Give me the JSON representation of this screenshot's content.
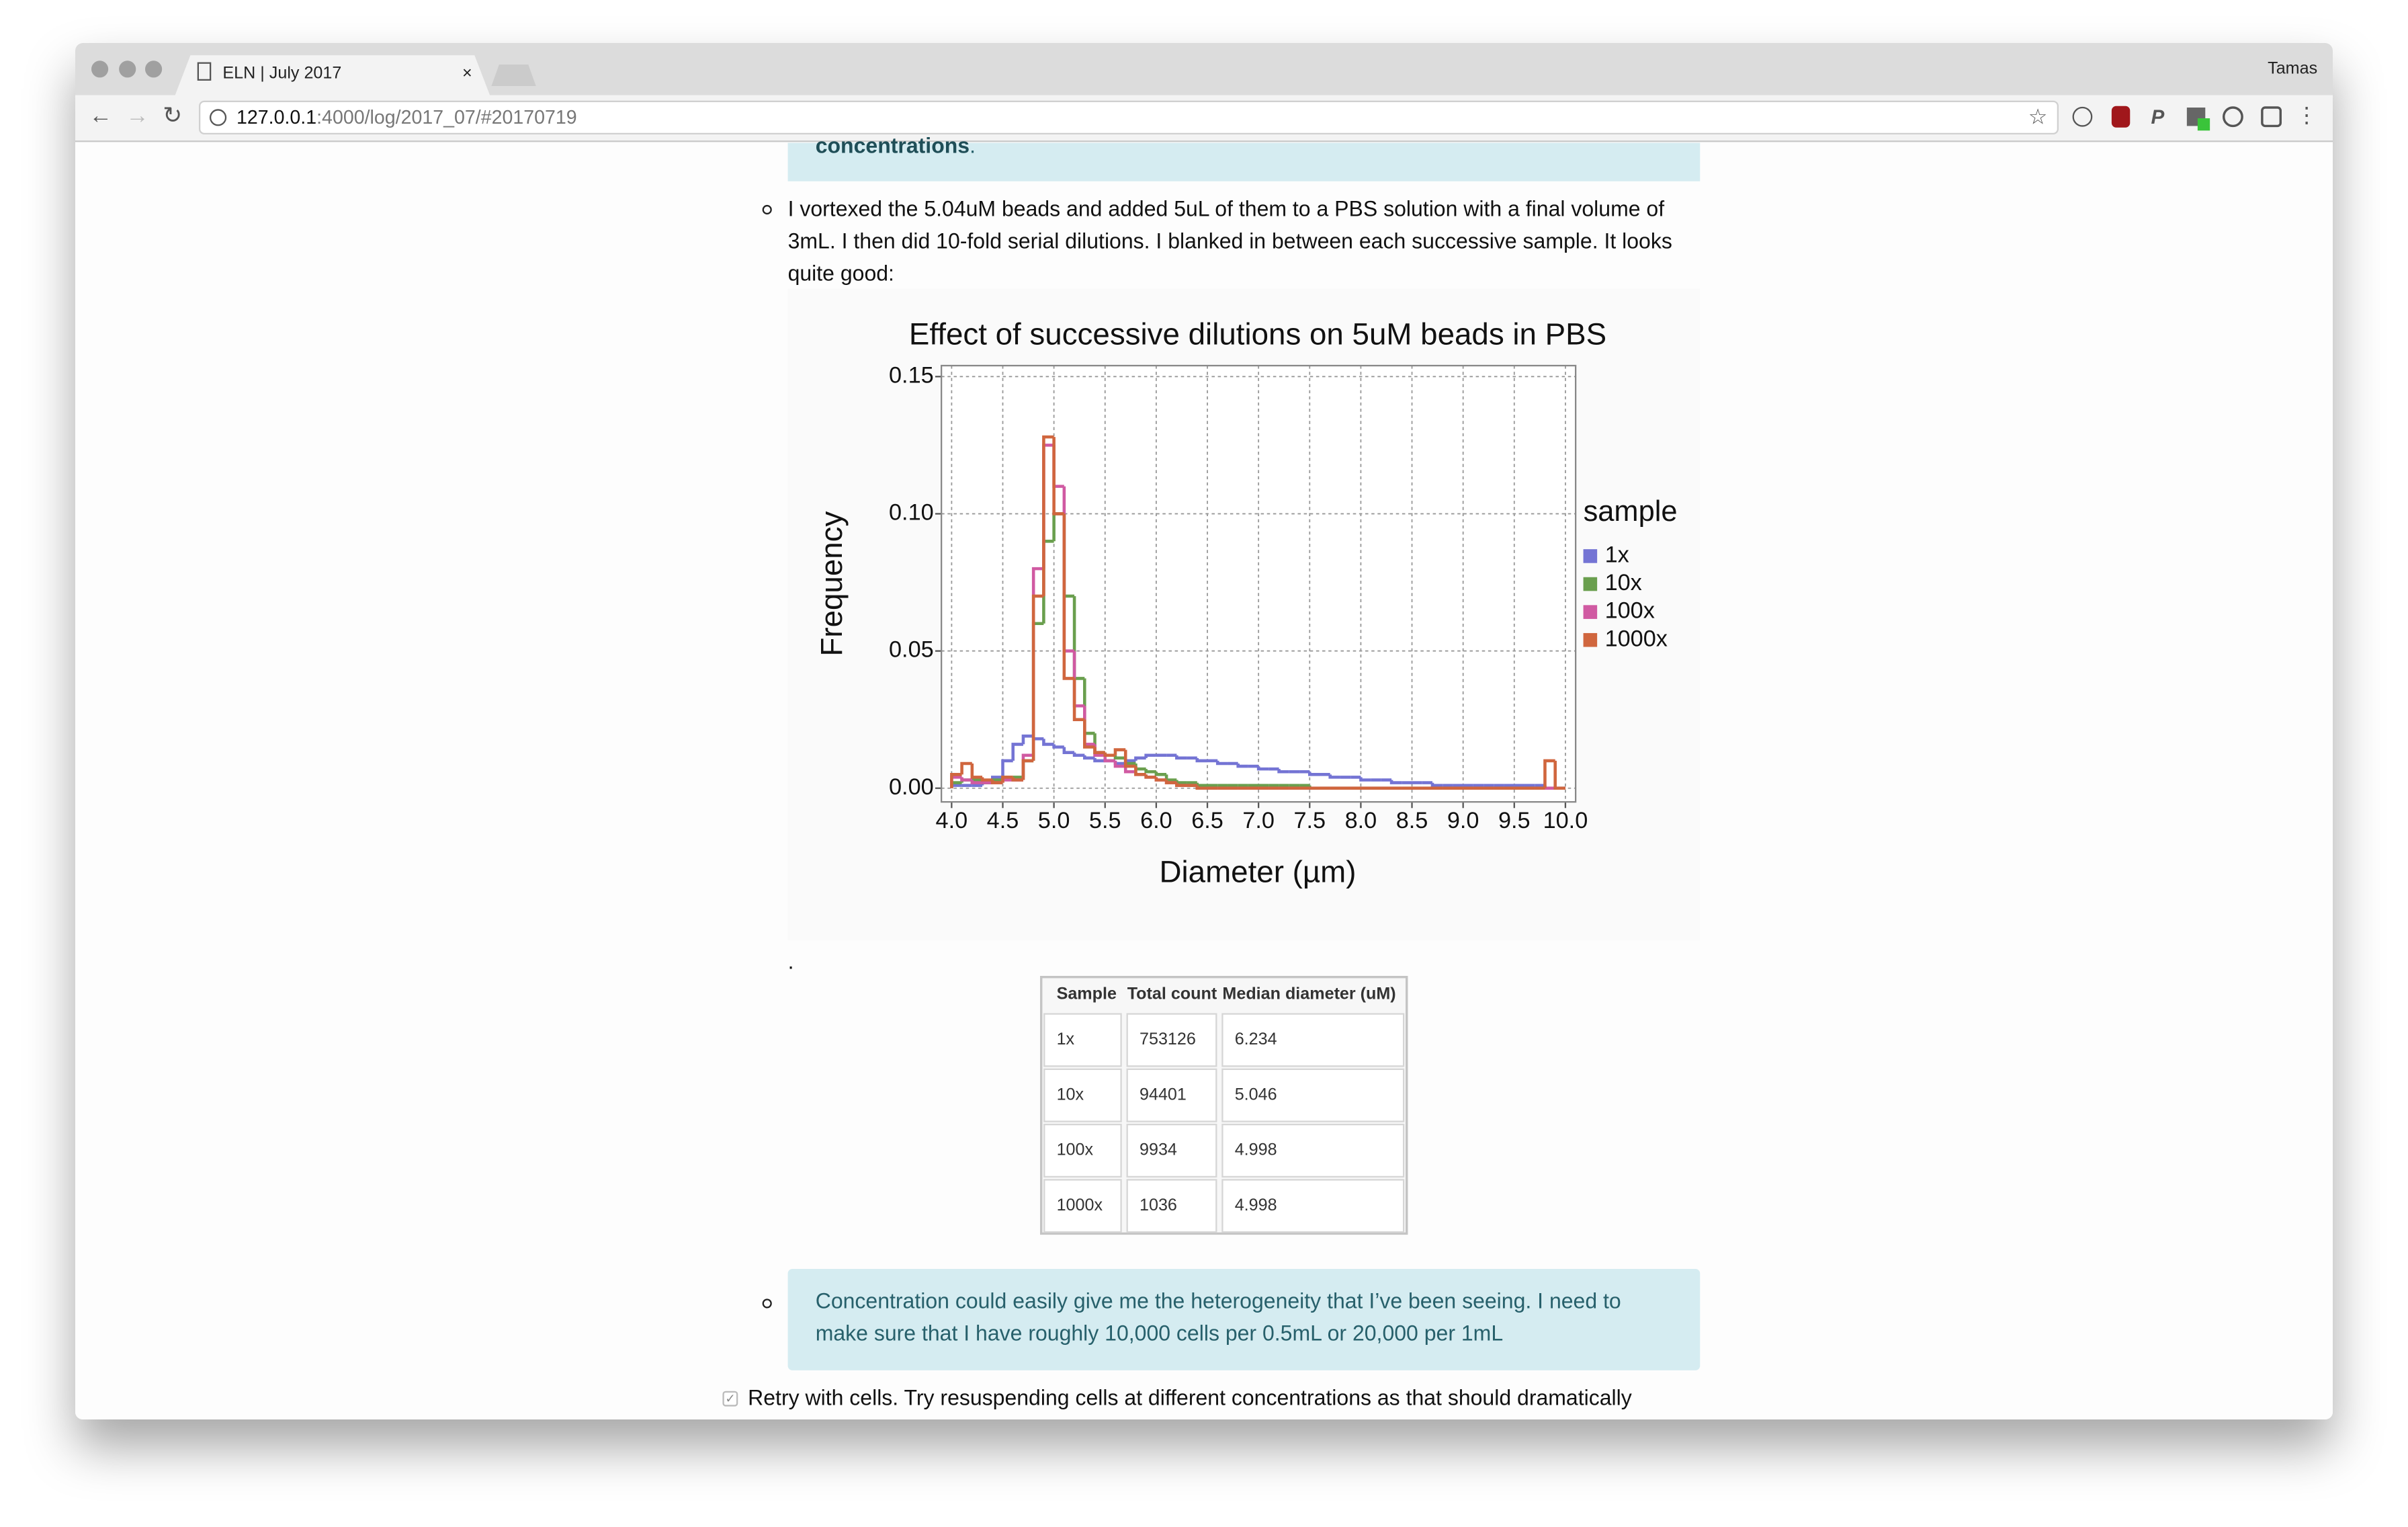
{
  "browser": {
    "tab_title": "ELN | July 2017",
    "user": "Tamas",
    "url_host": "127.0.0.1",
    "url_path": ":4000/log/2017_07/#20170719"
  },
  "content": {
    "callout_top": {
      "bold": "concentrations",
      "rest": "."
    },
    "paragraph_lines": [
      "I vortexed the 5.04uM beads and added 5uL of them to a PBS solution with a final volume of",
      "3mL. I then did 10-fold serial dilutions. I blanked in between each successive sample. It looks",
      "quite good:"
    ],
    "caption_dot": ".",
    "table": {
      "header": [
        "Sample",
        "Total count",
        "Median diameter (uM)"
      ],
      "rows": [
        [
          "1x",
          753126,
          6.234
        ],
        [
          "10x",
          94401,
          5.046
        ],
        [
          "100x",
          9934,
          4.998
        ],
        [
          "1000x",
          1036,
          4.998
        ]
      ]
    },
    "callout_lines": [
      "Concentration could easily give me the heterogeneity that I’ve been seeing. I need to",
      "make sure that I have roughly 10,000 cells per 0.5mL or 20,000 per 1mL"
    ],
    "checkbox_text": "Retry with cells. Try resuspending cells at different concentrations as that should dramatically"
  },
  "chart_data": {
    "type": "histogram",
    "title": "Effect of successive dilutions on 5uM beads in PBS",
    "xlabel": "Diameter (µm)",
    "ylabel": "Frequency",
    "legend_title": "sample",
    "legend": "right",
    "grid": true,
    "xlim": [
      3.9,
      10.1
    ],
    "ylim": [
      -0.005,
      0.154
    ],
    "xticks": [
      {
        "value": 4,
        "label": "4.0"
      },
      4.5,
      {
        "value": 5,
        "label": "5.0"
      },
      5.5,
      {
        "value": 6,
        "label": "6.0"
      },
      6.5,
      {
        "value": 7,
        "label": "7.0"
      },
      7.5,
      {
        "value": 8,
        "label": "8.0"
      },
      8.5,
      {
        "value": 9,
        "label": "9.0"
      },
      9.5,
      {
        "value": 10,
        "label": "10.0"
      }
    ],
    "yticks": [
      {
        "value": 0,
        "label": "0.00"
      },
      0.05,
      {
        "value": 0.1,
        "label": "0.10"
      },
      0.15
    ],
    "bins": [
      4.0,
      4.1,
      4.2,
      4.3,
      4.4,
      4.5,
      4.6,
      4.7,
      4.8,
      4.9,
      5.0,
      5.1,
      5.2,
      5.3,
      5.4,
      5.5,
      5.6,
      5.7,
      5.8,
      5.9,
      6.0,
      6.1,
      6.2,
      6.3,
      6.4,
      6.5,
      6.6,
      6.7,
      6.8,
      6.9,
      7.0,
      7.1,
      7.2,
      7.3,
      7.4,
      7.5,
      7.6,
      7.7,
      7.8,
      7.9,
      8.0,
      8.1,
      8.2,
      8.3,
      8.4,
      8.5,
      8.6,
      8.7,
      8.8,
      8.9,
      9.0,
      9.1,
      9.2,
      9.3,
      9.4,
      9.5,
      9.6,
      9.7,
      9.8,
      9.9,
      10.0
    ],
    "series": [
      {
        "name": "1x",
        "color": "#7474d4",
        "values": [
          0.001,
          0.001,
          0.001,
          0.002,
          0.004,
          0.01,
          0.016,
          0.019,
          0.018,
          0.016,
          0.015,
          0.013,
          0.012,
          0.011,
          0.01,
          0.01,
          0.009,
          0.01,
          0.011,
          0.012,
          0.012,
          0.012,
          0.011,
          0.011,
          0.01,
          0.01,
          0.009,
          0.009,
          0.008,
          0.008,
          0.007,
          0.007,
          0.006,
          0.006,
          0.006,
          0.005,
          0.005,
          0.004,
          0.004,
          0.004,
          0.003,
          0.003,
          0.003,
          0.002,
          0.002,
          0.002,
          0.002,
          0.001,
          0.001,
          0.001,
          0.001,
          0.001,
          0.001,
          0.001,
          0.001,
          0.001,
          0.001,
          0.001,
          0,
          0
        ]
      },
      {
        "name": "10x",
        "color": "#6a9f4e",
        "values": [
          0.002,
          0.003,
          0.003,
          0.002,
          0.003,
          0.004,
          0.004,
          0.01,
          0.06,
          0.09,
          0.1,
          0.07,
          0.04,
          0.02,
          0.013,
          0.012,
          0.011,
          0.009,
          0.007,
          0.006,
          0.005,
          0.003,
          0.002,
          0.002,
          0.001,
          0.001,
          0.001,
          0.001,
          0.001,
          0.001,
          0.001,
          0.001,
          0.001,
          0.001,
          0.001,
          0,
          0,
          0,
          0,
          0,
          0,
          0,
          0,
          0,
          0,
          0,
          0,
          0,
          0,
          0,
          0,
          0,
          0,
          0,
          0,
          0,
          0,
          0,
          0,
          0
        ]
      },
      {
        "name": "100x",
        "color": "#d05aa2",
        "values": [
          0.004,
          0.003,
          0.002,
          0.002,
          0.002,
          0.003,
          0.003,
          0.012,
          0.08,
          0.125,
          0.11,
          0.05,
          0.03,
          0.016,
          0.012,
          0.01,
          0.008,
          0.006,
          0.005,
          0.004,
          0.003,
          0.002,
          0.001,
          0.001,
          0,
          0,
          0,
          0,
          0,
          0,
          0,
          0,
          0,
          0,
          0,
          0,
          0,
          0,
          0,
          0,
          0,
          0,
          0,
          0,
          0,
          0,
          0,
          0,
          0,
          0,
          0,
          0,
          0,
          0,
          0,
          0,
          0,
          0,
          0,
          0
        ]
      },
      {
        "name": "1000x",
        "color": "#d0663e",
        "values": [
          0.005,
          0.009,
          0.004,
          0.003,
          0.002,
          0.004,
          0.003,
          0.01,
          0.07,
          0.128,
          0.1,
          0.04,
          0.025,
          0.015,
          0.013,
          0.012,
          0.014,
          0.008,
          0.005,
          0.004,
          0.003,
          0.002,
          0.001,
          0.001,
          0,
          0,
          0,
          0,
          0,
          0,
          0,
          0,
          0,
          0,
          0,
          0,
          0,
          0,
          0,
          0,
          0,
          0,
          0,
          0,
          0,
          0,
          0,
          0,
          0,
          0,
          0,
          0,
          0,
          0,
          0,
          0,
          0,
          0,
          0.01,
          0
        ]
      }
    ]
  }
}
